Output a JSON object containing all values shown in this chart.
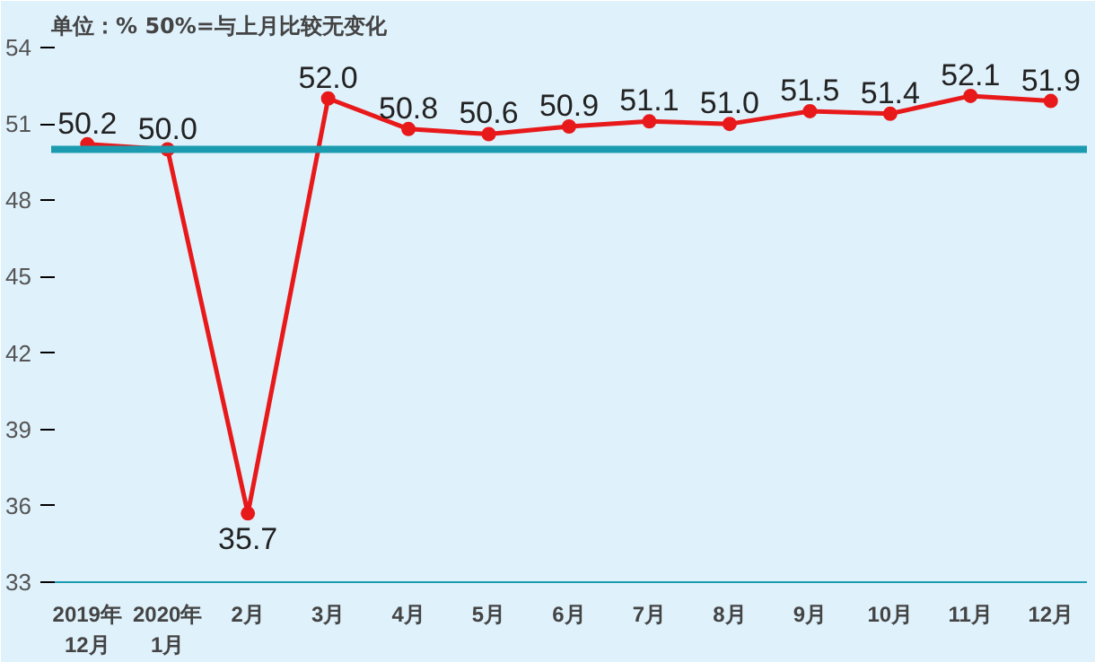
{
  "chart_data": {
    "type": "line",
    "title": "单位：%  50%=与上月比较无变化",
    "categories": [
      "2019年\n12月",
      "2020年\n1月",
      "2月",
      "3月",
      "4月",
      "5月",
      "6月",
      "7月",
      "8月",
      "9月",
      "10月",
      "11月",
      "12月"
    ],
    "series": [
      {
        "color": "#e8191a",
        "values": [
          50.2,
          50.0,
          35.7,
          52.0,
          50.8,
          50.6,
          50.9,
          51.1,
          51.0,
          51.5,
          51.4,
          52.1,
          51.9
        ],
        "value_labels": [
          "50.2",
          "50.0",
          "35.7",
          "52.0",
          "50.8",
          "50.6",
          "50.9",
          "51.1",
          "51.0",
          "51.5",
          "51.4",
          "52.1",
          "51.9"
        ]
      }
    ],
    "ylim": [
      33,
      54
    ],
    "yticks": [
      33,
      36,
      39,
      42,
      45,
      48,
      51,
      54
    ],
    "ref_lines": [
      {
        "axis": "y",
        "value": 50,
        "label": null,
        "color": "#1a9bb0"
      }
    ],
    "marker": "circle",
    "line_style": "solid",
    "grid": false
  }
}
